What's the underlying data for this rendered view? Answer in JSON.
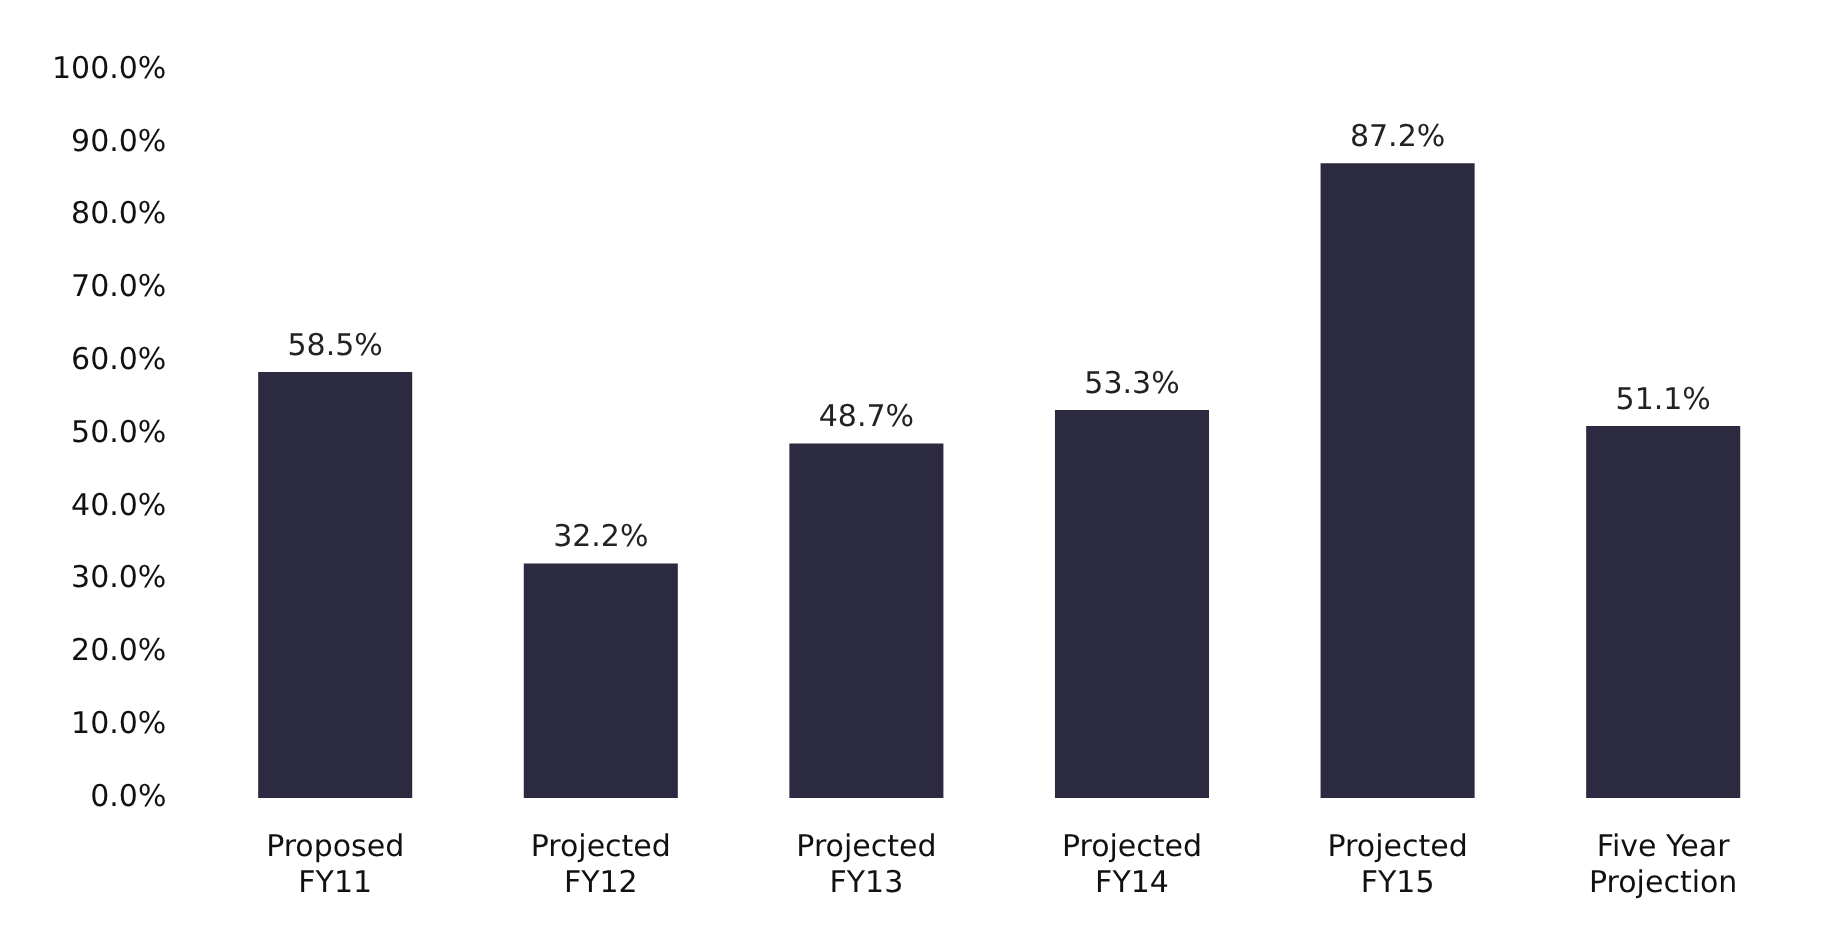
{
  "chart_data": {
    "type": "bar",
    "categories": [
      "Proposed\nFY11",
      "Projected\nFY12",
      "Projected\nFY13",
      "Projected\nFY14",
      "Projected\nFY15",
      "Five Year\nProjection"
    ],
    "values": [
      58.5,
      32.2,
      48.7,
      53.3,
      87.2,
      51.1
    ],
    "value_labels": [
      "58.5%",
      "32.2%",
      "48.7%",
      "53.3%",
      "87.2%",
      "51.1%"
    ],
    "color": "#2b2a40",
    "ylim": [
      0,
      100
    ],
    "yticks": [
      {
        "value": 0,
        "label": "0.0%"
      },
      {
        "value": 10,
        "label": "10.0%"
      },
      {
        "value": 20,
        "label": "20.0%"
      },
      {
        "value": 30,
        "label": "30.0%"
      },
      {
        "value": 40,
        "label": "40.0%"
      },
      {
        "value": 50,
        "label": "50.0%"
      },
      {
        "value": 60,
        "label": "60.0%"
      },
      {
        "value": 70,
        "label": "70.0%"
      },
      {
        "value": 80,
        "label": "80.0%"
      },
      {
        "value": 90,
        "label": "90.0%"
      },
      {
        "value": 100,
        "label": "100.0%"
      }
    ],
    "grid": false,
    "legend": false
  }
}
